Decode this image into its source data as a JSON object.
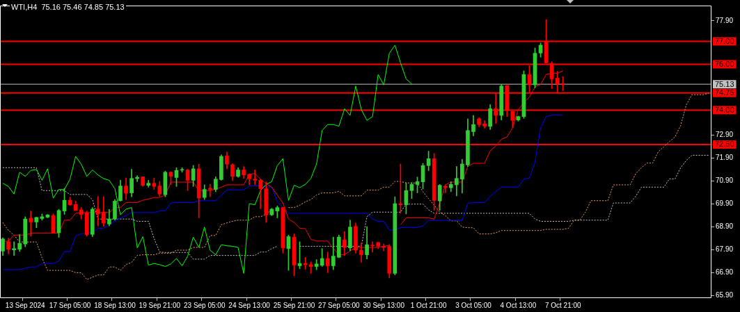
{
  "chart_data": {
    "type": "candlestick",
    "title": "WTI,H4  75.16 75.46 74.85 75.13",
    "categories": [
      null,
      null,
      null,
      null,
      "13 Sep 2024",
      null,
      null,
      null,
      null,
      null,
      null,
      null,
      "17 Sep 05:00",
      null,
      null,
      null,
      null,
      null,
      null,
      null,
      "18 Sep 13:00",
      null,
      null,
      null,
      null,
      null,
      null,
      null,
      "19 Sep 21:00",
      null,
      null,
      null,
      null,
      null,
      null,
      null,
      "23 Sep 05:00",
      null,
      null,
      null,
      null,
      null,
      null,
      null,
      "24 Sep 13:00",
      null,
      null,
      null,
      null,
      null,
      null,
      null,
      "25 Sep 21:00",
      null,
      null,
      null,
      null,
      null,
      null,
      null,
      "27 Sep 05:00",
      null,
      null,
      null,
      null,
      null,
      null,
      null,
      "30 Sep 13:00",
      null,
      null,
      null,
      null,
      null,
      null,
      null,
      "1 Oct 21:00",
      null,
      null,
      null,
      null,
      null,
      null,
      null,
      "3 Oct 05:00",
      null,
      null,
      null,
      null,
      null,
      null,
      null,
      "4 Oct 13:00",
      null,
      null,
      null,
      null,
      null,
      null,
      null,
      "7 Oct 21:00",
      null,
      null,
      null,
      null,
      null,
      null,
      null,
      null,
      null,
      null,
      null,
      null,
      null,
      null,
      null,
      null,
      null,
      null,
      null,
      null,
      null,
      null,
      null,
      null,
      null,
      null
    ],
    "ohlc": [
      [
        67.85,
        68.43,
        67.66,
        68.38
      ],
      [
        68.26,
        68.41,
        67.73,
        67.93
      ],
      [
        67.9,
        68.26,
        67.66,
        67.96
      ],
      [
        67.93,
        68.57,
        67.83,
        68.19
      ],
      [
        68.16,
        69.35,
        68.04,
        69.25
      ],
      [
        69.28,
        69.6,
        68.5,
        69.12
      ],
      [
        69.12,
        69.33,
        68.87,
        69.32
      ],
      [
        69.27,
        69.47,
        69.2,
        69.35
      ],
      [
        69.33,
        69.45,
        69.3,
        69.43
      ],
      [
        69.4,
        69.47,
        68.63,
        68.65
      ],
      [
        68.65,
        69.67,
        68.45,
        69.62
      ],
      [
        69.6,
        70.59,
        69.45,
        70.07
      ],
      [
        70.07,
        70.2,
        69.85,
        69.87
      ],
      [
        69.89,
        70.03,
        69.62,
        69.62
      ],
      [
        69.65,
        69.75,
        69.25,
        69.45
      ],
      [
        69.52,
        69.6,
        68.5,
        68.57
      ],
      [
        68.58,
        69.75,
        68.48,
        69.68
      ],
      [
        69.68,
        70.24,
        68.95,
        69.47
      ],
      [
        69.55,
        70.22,
        68.93,
        69.07
      ],
      [
        69.03,
        69.67,
        68.95,
        69.25
      ],
      [
        69.25,
        70.1,
        69.2,
        70.03
      ],
      [
        70.05,
        70.94,
        70.03,
        70.69
      ],
      [
        70.69,
        71.04,
        70.1,
        70.37
      ],
      [
        70.39,
        71.42,
        70.22,
        71.02
      ],
      [
        71.01,
        71.14,
        70.88,
        71.07
      ],
      [
        71.09,
        71.09,
        70.67,
        70.72
      ],
      [
        70.72,
        70.94,
        70.64,
        70.81
      ],
      [
        70.81,
        71.04,
        70.54,
        70.67
      ],
      [
        70.69,
        70.89,
        70.24,
        70.34
      ],
      [
        70.31,
        71.34,
        70.22,
        71.29
      ],
      [
        71.29,
        71.31,
        70.74,
        71.11
      ],
      [
        71.06,
        71.49,
        70.67,
        71.37
      ],
      [
        71.38,
        71.49,
        71.29,
        71.41
      ],
      [
        71.39,
        71.42,
        70.49,
        70.94
      ],
      [
        70.94,
        71.59,
        70.67,
        71.44
      ],
      [
        71.44,
        71.64,
        69.3,
        70.16
      ],
      [
        70.19,
        70.74,
        70.1,
        70.54
      ],
      [
        70.59,
        70.77,
        70.22,
        70.54
      ],
      [
        70.54,
        71.09,
        70.44,
        70.99
      ],
      [
        70.97,
        72.05,
        70.94,
        71.98
      ],
      [
        72.0,
        72.18,
        71.44,
        71.64
      ],
      [
        71.62,
        71.66,
        70.92,
        71.11
      ],
      [
        71.11,
        71.49,
        71.07,
        71.39
      ],
      [
        71.39,
        71.54,
        71.02,
        71.17
      ],
      [
        71.19,
        71.22,
        70.74,
        71.01
      ],
      [
        70.99,
        71.39,
        70.74,
        70.94
      ],
      [
        70.94,
        70.99,
        69.7,
        70.57
      ],
      [
        70.57,
        70.87,
        69.1,
        69.43
      ],
      [
        69.43,
        69.72,
        69.4,
        69.68
      ],
      [
        69.6,
        69.82,
        69.3,
        69.75
      ],
      [
        69.75,
        69.77,
        67.76,
        67.99
      ],
      [
        67.96,
        68.55,
        67.01,
        68.48
      ],
      [
        68.46,
        68.6,
        66.77,
        67.24
      ],
      [
        67.21,
        68.26,
        67.08,
        67.31
      ],
      [
        67.31,
        67.58,
        67.06,
        67.26
      ],
      [
        67.26,
        67.38,
        66.88,
        67.18
      ],
      [
        67.18,
        67.48,
        67.04,
        67.29
      ],
      [
        67.23,
        67.96,
        67.18,
        67.53
      ],
      [
        67.53,
        67.81,
        66.91,
        67.21
      ],
      [
        67.21,
        68.46,
        67.04,
        67.63
      ],
      [
        67.58,
        68.55,
        67.56,
        68.46
      ],
      [
        68.34,
        68.7,
        67.66,
        68.01
      ],
      [
        67.99,
        69.2,
        67.86,
        68.9
      ],
      [
        68.93,
        69.08,
        67.76,
        67.89
      ],
      [
        67.89,
        68.21,
        67.36,
        67.69
      ],
      [
        67.69,
        68.92,
        67.51,
        68.13
      ],
      [
        68.11,
        68.26,
        67.81,
        68.08
      ],
      [
        68.23,
        68.23,
        67.96,
        68.06
      ],
      [
        68.06,
        68.16,
        67.86,
        68.01
      ],
      [
        68.06,
        68.14,
        66.68,
        66.88
      ],
      [
        66.88,
        70.22,
        66.81,
        69.92
      ],
      [
        69.92,
        71.65,
        69.5,
        69.87
      ],
      [
        69.87,
        70.84,
        69.47,
        70.49
      ],
      [
        70.49,
        70.84,
        70.14,
        70.76
      ],
      [
        70.76,
        71.08,
        70.39,
        70.88
      ],
      [
        70.87,
        71.68,
        70.56,
        71.58
      ],
      [
        71.58,
        72.21,
        71.36,
        71.88
      ],
      [
        71.88,
        72.11,
        69.63,
        70.06
      ],
      [
        70.04,
        70.76,
        69.63,
        70.72
      ],
      [
        70.68,
        70.74,
        70.39,
        70.62
      ],
      [
        70.61,
        70.88,
        70.44,
        70.76
      ],
      [
        70.74,
        71.54,
        70.26,
        71.02
      ],
      [
        70.99,
        71.85,
        70.38,
        71.65
      ],
      [
        71.61,
        73.62,
        71.54,
        73.11
      ],
      [
        73.06,
        73.77,
        72.88,
        73.37
      ],
      [
        73.62,
        73.67,
        73.27,
        73.37
      ],
      [
        73.4,
        73.54,
        73.21,
        73.3
      ],
      [
        73.29,
        74.24,
        73.15,
        74.06
      ],
      [
        74.06,
        74.72,
        73.42,
        73.77
      ],
      [
        73.77,
        75.12,
        73.57,
        75.05
      ],
      [
        75.07,
        75.07,
        73.72,
        74.02
      ],
      [
        73.94,
        73.94,
        73.23,
        73.55
      ],
      [
        73.57,
        73.74,
        73.52,
        73.72
      ],
      [
        73.72,
        75.71,
        73.64,
        75.55
      ],
      [
        75.55,
        75.94,
        74.77,
        75.1
      ],
      [
        75.1,
        76.71,
        74.97,
        76.48
      ],
      [
        76.49,
        76.93,
        76.31,
        76.83
      ],
      [
        77.0,
        77.95,
        76.06,
        76.06
      ],
      [
        76.03,
        76.11,
        74.94,
        75.36
      ],
      [
        75.39,
        75.69,
        74.72,
        75.14
      ],
      [
        75.16,
        75.46,
        74.85,
        75.13
      ],
      null,
      null,
      null,
      null,
      null,
      null,
      null,
      null,
      null,
      null,
      null,
      null,
      null,
      null,
      null,
      null,
      null,
      null,
      null,
      null,
      null,
      null,
      null,
      null,
      null,
      null
    ],
    "colors": [
      "#32cd32",
      "#ff0000",
      "#32cd32",
      "#32cd32",
      "#32cd32",
      "#ff0000",
      "#32cd32",
      "#32cd32",
      "#32cd32",
      "#ff0000",
      "#32cd32",
      "#32cd32",
      "#ff0000",
      "#ff0000",
      "#ff0000",
      "#ff0000",
      "#32cd32",
      "#ff0000",
      "#ff0000",
      "#32cd32",
      "#32cd32",
      "#32cd32",
      "#ff0000",
      "#32cd32",
      "#32cd32",
      "#ff0000",
      "#32cd32",
      "#ff0000",
      "#ff0000",
      "#32cd32",
      "#ff0000",
      "#32cd32",
      "#32cd32",
      "#ff0000",
      "#32cd32",
      "#ff0000",
      "#32cd32",
      "#ff0000",
      "#32cd32",
      "#32cd32",
      "#ff0000",
      "#ff0000",
      "#32cd32",
      "#ff0000",
      "#ff0000",
      "#ff0000",
      "#ff0000",
      "#ff0000",
      "#32cd32",
      "#32cd32",
      "#ff0000",
      "#32cd32",
      "#ff0000",
      "#32cd32",
      "#ff0000",
      "#ff0000",
      "#32cd32",
      "#32cd32",
      "#ff0000",
      "#32cd32",
      "#32cd32",
      "#ff0000",
      "#32cd32",
      "#ff0000",
      "#ff0000",
      "#32cd32",
      "#ff0000",
      "#ff0000",
      "#ff0000",
      "#ff0000",
      "#32cd32",
      "#ff0000",
      "#32cd32",
      "#32cd32",
      "#32cd32",
      "#32cd32",
      "#32cd32",
      "#ff0000",
      "#32cd32",
      "#ff0000",
      "#32cd32",
      "#32cd32",
      "#32cd32",
      "#32cd32",
      "#32cd32",
      "#ff0000",
      "#ff0000",
      "#32cd32",
      "#ff0000",
      "#32cd32",
      "#ff0000",
      "#ff0000",
      "#32cd32",
      "#32cd32",
      "#ff0000",
      "#32cd32",
      "#32cd32",
      "#ff0000",
      "#ff0000",
      "#ff0000",
      "#ff0000",
      null,
      null,
      null,
      null,
      null,
      null,
      null,
      null,
      null,
      null,
      null,
      null,
      null,
      null,
      null,
      null,
      null,
      null,
      null,
      null,
      null,
      null,
      null,
      null,
      null,
      null
    ],
    "series": [
      {
        "type": "line",
        "color": "#00ff00",
        "values": [
          70.81,
          70.67,
          70.34,
          71.29,
          71.11,
          71.37,
          71.41,
          70.94,
          71.44,
          70.16,
          70.54,
          70.54,
          70.99,
          71.98,
          71.64,
          71.11,
          71.39,
          71.17,
          71.01,
          70.94,
          70.57,
          69.43,
          69.68,
          69.75,
          67.99,
          68.48,
          67.24,
          67.31,
          67.26,
          67.18,
          67.29,
          67.53,
          67.21,
          67.63,
          68.46,
          68.01,
          68.9,
          67.89,
          67.69,
          68.13,
          68.08,
          68.06,
          68.01,
          66.88,
          69.92,
          69.87,
          70.49,
          70.76,
          70.88,
          71.58,
          71.88,
          70.06,
          70.72,
          70.62,
          70.76,
          71.02,
          71.65,
          73.11,
          73.37,
          73.37,
          73.3,
          74.06,
          73.77,
          75.05,
          74.02,
          73.55,
          73.72,
          75.55,
          75.1,
          76.48,
          76.83,
          76.06,
          75.36,
          75.14,
          null,
          null,
          null,
          null,
          null,
          null,
          null,
          null,
          null,
          null,
          null,
          null,
          null,
          null,
          null,
          null,
          null,
          null,
          null,
          null,
          null,
          null,
          null,
          null,
          null,
          null,
          null,
          null,
          null,
          null,
          null,
          null,
          null,
          null,
          null,
          null,
          null,
          null,
          null,
          null,
          null,
          null,
          null,
          null,
          null,
          null,
          null,
          null,
          null,
          null,
          null,
          null,
          null
        ]
      },
      {
        "type": "line",
        "color": "#ff0000",
        "values": [
          68.28,
          68.28,
          68.55,
          68.55,
          68.55,
          68.63,
          68.63,
          68.63,
          68.63,
          68.63,
          68.63,
          69.2,
          69.2,
          69.5,
          69.53,
          69.53,
          69.53,
          69.53,
          69.53,
          69.53,
          69.75,
          69.75,
          69.97,
          69.97,
          69.97,
          70.07,
          70.12,
          70.19,
          70.19,
          70.29,
          70.86,
          70.86,
          70.86,
          70.86,
          70.86,
          70.49,
          70.49,
          70.49,
          70.55,
          70.64,
          70.74,
          70.74,
          70.74,
          70.74,
          71.19,
          71.24,
          70.99,
          70.79,
          70.64,
          70.29,
          69.95,
          69.25,
          69.1,
          68.85,
          68.83,
          68.36,
          68.29,
          68.29,
          68.29,
          67.96,
          67.69,
          67.69,
          67.86,
          68.01,
          68.01,
          68.01,
          68.01,
          68.01,
          68.06,
          68.1,
          null,
          69.0,
          69.3,
          69.3,
          69.3,
          69.3,
          69.3,
          69.25,
          69.95,
          70.74,
          70.86,
          70.86,
          70.86,
          71.54,
          71.68,
          71.68,
          71.68,
          72.23,
          72.43,
          72.73,
          72.83,
          73.23,
          74.02,
          74.32,
          74.57,
          75.02,
          75.12,
          75.56,
          75.61,
          75.61,
          75.71,
          null,
          null,
          null,
          null,
          null,
          null,
          null,
          null,
          null,
          null,
          null,
          null,
          null,
          null,
          null,
          null,
          null,
          null,
          null,
          null,
          null,
          null,
          null,
          null,
          null,
          null
        ]
      },
      {
        "type": "line",
        "color": "#0000ff",
        "values": [
          67.04,
          67.04,
          67.04,
          67.04,
          67.1,
          67.16,
          67.16,
          67.31,
          67.31,
          67.31,
          67.41,
          67.83,
          67.83,
          68.51,
          68.6,
          68.65,
          68.65,
          68.85,
          68.85,
          69.0,
          69.15,
          69.3,
          69.4,
          69.53,
          69.53,
          69.53,
          69.53,
          69.53,
          69.6,
          69.6,
          69.95,
          69.97,
          69.97,
          69.97,
          69.97,
          70.05,
          70.05,
          70.05,
          70.05,
          70.29,
          70.52,
          70.52,
          70.52,
          70.52,
          70.69,
          70.69,
          70.69,
          70.65,
          70.65,
          70.0,
          69.75,
          69.5,
          69.5,
          69.5,
          69.5,
          69.5,
          69.5,
          69.5,
          69.5,
          69.5,
          69.5,
          69.5,
          69.5,
          69.5,
          69.5,
          69.5,
          69.25,
          69.15,
          69.15,
          68.77,
          68.77,
          68.88,
          68.88,
          68.88,
          68.88,
          68.95,
          69.19,
          69.19,
          69.19,
          69.19,
          69.19,
          69.19,
          69.19,
          69.94,
          69.96,
          69.96,
          69.96,
          70.24,
          70.44,
          70.64,
          70.64,
          70.64,
          70.64,
          70.99,
          71.04,
          71.74,
          73.23,
          73.72,
          73.78,
          73.78,
          73.78,
          null,
          null,
          null,
          null,
          null,
          null,
          null,
          null,
          null,
          null,
          null,
          null,
          null,
          null,
          null,
          null,
          null,
          null,
          null,
          null,
          null,
          null,
          null,
          null,
          null,
          null
        ]
      },
      {
        "type": "line",
        "color": "#f4a460",
        "line_style": "dotted",
        "values": [
          69.1,
          68.75,
          68.55,
          68.25,
          68.25,
          68.25,
          68.25,
          67.56,
          67.01,
          67.01,
          67.01,
          67.01,
          67.01,
          66.91,
          66.91,
          66.61,
          66.71,
          66.81,
          66.81,
          67.16,
          67.16,
          67.01,
          67.26,
          67.36,
          67.66,
          67.69,
          67.69,
          67.69,
          67.76,
          67.76,
          67.76,
          67.89,
          67.89,
          67.89,
          68.01,
          68.01,
          68.01,
          68.53,
          68.53,
          69.0,
          69.08,
          69.15,
          69.2,
          69.2,
          69.2,
          69.35,
          69.35,
          69.45,
          69.65,
          null,
          null,
          69.75,
          69.75,
          69.85,
          70.0,
          70.1,
          70.3,
          70.39,
          70.39,
          70.39,
          70.46,
          70.26,
          70.26,
          70.26,
          70.26,
          70.51,
          70.51,
          70.51,
          70.64,
          70.64,
          70.89,
          70.89,
          70.82,
          70.82,
          70.82,
          70.44,
          70.14,
          69.85,
          69.55,
          69.4,
          69.17,
          69.17,
          68.9,
          68.87,
          68.87,
          68.6,
          68.6,
          68.6,
          68.65,
          68.75,
          68.75,
          68.75,
          68.75,
          68.75,
          68.75,
          68.75,
          68.75,
          68.8,
          68.8,
          68.8,
          68.8,
          68.85,
          69.2,
          69.2,
          69.55,
          70.05,
          70.05,
          70.05,
          70.05,
          70.74,
          70.74,
          70.74,
          70.74,
          71.24,
          71.49,
          71.69,
          71.69,
          72.18,
          72.4,
          72.63,
          72.83,
          73.33,
          74.22,
          74.67,
          74.67,
          74.67,
          74.74
        ]
      },
      {
        "type": "line",
        "color": "#d8bfd8",
        "line_style": "dotted",
        "values": [
          71.49,
          71.49,
          71.49,
          71.49,
          71.49,
          71.49,
          71.49,
          70.49,
          70.49,
          70.49,
          70.49,
          70.49,
          70.32,
          70.32,
          70.32,
          70.32,
          70.1,
          69.25,
          69.25,
          69.25,
          69.25,
          69.25,
          69.25,
          69.25,
          69.15,
          69.15,
          69.15,
          68.4,
          67.81,
          67.79,
          67.79,
          67.79,
          67.79,
          67.79,
          67.5,
          67.5,
          67.5,
          67.66,
          67.66,
          67.66,
          67.66,
          67.66,
          67.66,
          67.66,
          67.66,
          67.66,
          67.81,
          67.81,
          67.96,
          68.06,
          null,
          null,
          null,
          68.06,
          68.06,
          68.06,
          68.06,
          68.06,
          68.06,
          68.06,
          68.06,
          68.06,
          68.06,
          68.06,
          68.06,
          69.35,
          69.55,
          69.55,
          69.55,
          69.55,
          69.55,
          69.55,
          69.9,
          69.9,
          69.9,
          69.9,
          69.65,
          69.5,
          69.5,
          69.5,
          69.5,
          69.5,
          69.5,
          69.5,
          69.5,
          69.5,
          69.5,
          69.5,
          69.5,
          69.5,
          69.5,
          69.5,
          69.5,
          69.5,
          69.5,
          69.25,
          69.15,
          69.15,
          69.15,
          69.15,
          69.15,
          69.15,
          69.2,
          69.2,
          69.2,
          69.2,
          69.2,
          69.2,
          69.2,
          69.95,
          69.95,
          69.95,
          69.95,
          70.25,
          70.64,
          70.64,
          70.64,
          70.64,
          70.64,
          71.0,
          71.0,
          71.49,
          71.8,
          72.03,
          72.03,
          72.03,
          72.03
        ]
      }
    ],
    "ylim": [
      65.8,
      78.56
    ],
    "yticks": [
      {
        "value": 77.9,
        "label": "77.90"
      },
      {
        "value": 72.9,
        "label": "72.90"
      },
      {
        "value": 71.9,
        "label": "71.90"
      },
      {
        "value": 70.9,
        "label": "70.90"
      },
      {
        "value": 69.9,
        "label": "69.90"
      },
      {
        "value": 68.9,
        "label": "68.90"
      },
      {
        "value": 67.9,
        "label": "67.90"
      },
      {
        "value": 66.9,
        "label": "66.90"
      },
      {
        "value": 65.9,
        "label": "65.90"
      }
    ],
    "ref_lines": [
      {
        "axis": "y",
        "value": 77,
        "label": "77.00",
        "color": "#ff0000"
      },
      {
        "axis": "y",
        "value": 76,
        "label": "76.00",
        "color": "#ff0000"
      },
      {
        "axis": "y",
        "value": 75.13,
        "label": "75.13",
        "color": "#c0c0c0"
      },
      {
        "axis": "y",
        "value": 74.75,
        "label": "74.75",
        "color": "#ff0000"
      },
      {
        "axis": "y",
        "value": 74,
        "label": "74.00",
        "color": "#ff0000"
      },
      {
        "axis": "y",
        "value": 72.5,
        "label": "72.50",
        "color": "#ff0000"
      }
    ],
    "grid": false,
    "legend": false,
    "marker": "none"
  }
}
